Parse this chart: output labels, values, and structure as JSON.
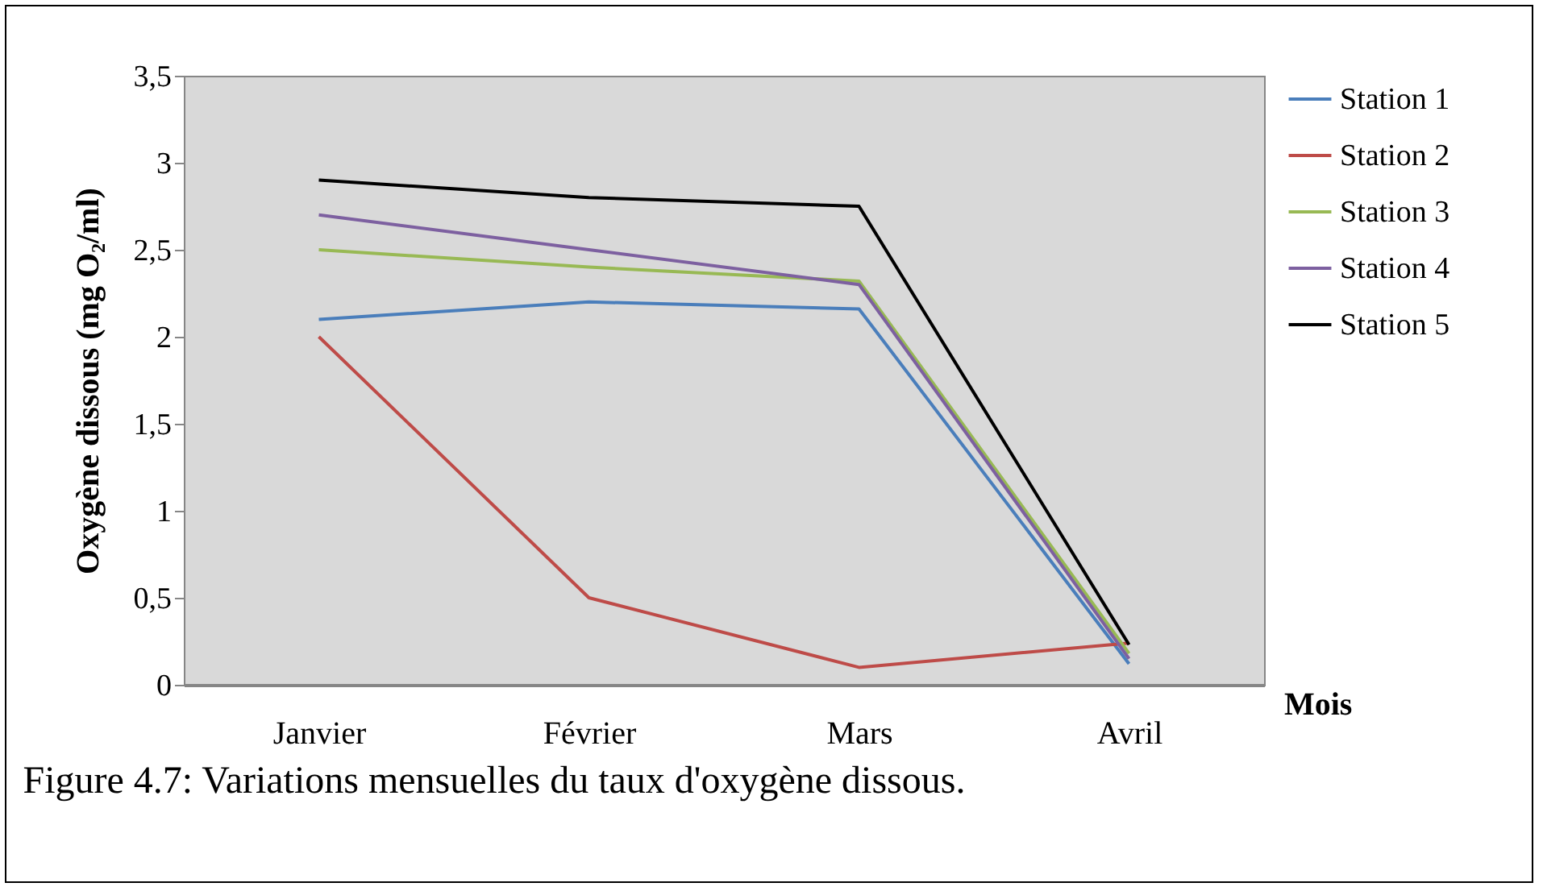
{
  "chart_data": {
    "type": "line",
    "title": "Figure 4.7: Variations mensuelles du taux d'oxygène dissous.",
    "xlabel": "Mois",
    "ylabel": "Oxygène dissous  (mg O₂/ml)",
    "categories": [
      "Janvier",
      "Février",
      "Mars",
      "Avril"
    ],
    "series": [
      {
        "name": "Station 1",
        "color": "#4a7ebb",
        "values": [
          2.1,
          2.2,
          2.16,
          0.12
        ]
      },
      {
        "name": "Station 2",
        "color": "#be4b48",
        "values": [
          2.0,
          0.5,
          0.1,
          0.24
        ]
      },
      {
        "name": "Station 3",
        "color": "#98b954",
        "values": [
          2.5,
          2.4,
          2.32,
          0.18
        ]
      },
      {
        "name": "Station 4",
        "color": "#7d60a0",
        "values": [
          2.7,
          2.5,
          2.3,
          0.15
        ]
      },
      {
        "name": "Station 5",
        "color": "#000000",
        "values": [
          2.9,
          2.8,
          2.75,
          0.23
        ]
      }
    ],
    "ylim": [
      0,
      3.5
    ],
    "yticks": [
      0,
      {
        "value": 0.5,
        "label": "0,5"
      },
      1,
      {
        "value": 1.5,
        "label": "1,5"
      },
      2,
      {
        "value": 2.5,
        "label": "2,5"
      },
      3,
      {
        "value": 3.5,
        "label": "3,5"
      }
    ],
    "grid": false,
    "legend": "right",
    "marker": "none",
    "line_style": "solid"
  }
}
